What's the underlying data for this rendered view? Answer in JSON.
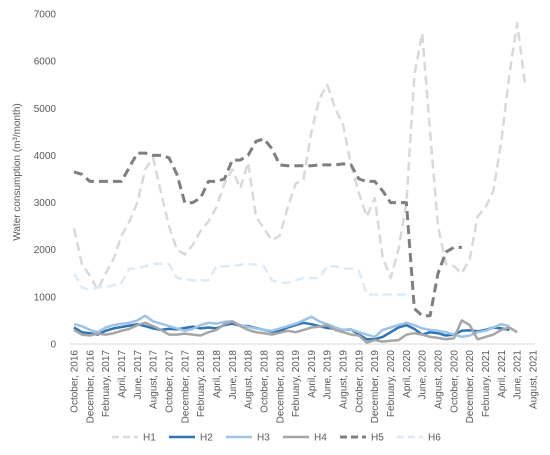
{
  "chart_data": {
    "type": "line",
    "title": "",
    "xlabel": "",
    "ylabel": "Water consumption (m³/month)",
    "ylim": [
      0,
      7000
    ],
    "yticks": [
      0,
      1000,
      2000,
      3000,
      4000,
      5000,
      6000,
      7000
    ],
    "grid": false,
    "legend_placement": "bottom",
    "x_tick_labels": [
      "October, 2016",
      "December, 2016",
      "February, 2017",
      "April, 2017",
      "June, 2017",
      "August, 2017",
      "October, 2017",
      "December, 2017",
      "February, 2018",
      "April, 2018",
      "June, 2018",
      "August, 2018",
      "October, 2018",
      "December, 2018",
      "February, 2019",
      "April, 2019",
      "June, 2019",
      "August, 2019",
      "October, 2019",
      "December, 2019",
      "February, 2020",
      "April, 2020",
      "June, 2020",
      "August, 2020",
      "October, 2020",
      "December, 2020",
      "February, 2021",
      "April, 2021",
      "June, 2021",
      "August, 2021"
    ],
    "series": [
      {
        "name": "H1",
        "color": "#d9d9d9",
        "dash": "dashed",
        "width": 2.5,
        "values": [
          2450,
          1700,
          1450,
          1150,
          1500,
          1800,
          2300,
          2600,
          3000,
          3700,
          3950,
          3200,
          2500,
          2000,
          1900,
          2100,
          2400,
          2600,
          2900,
          3400,
          3700,
          3300,
          3850,
          2700,
          2450,
          2200,
          2300,
          2900,
          3400,
          3500,
          4500,
          5200,
          5500,
          5000,
          4650,
          3800,
          3200,
          2700,
          3100,
          1850,
          1400,
          2000,
          3000,
          5700,
          6600,
          4500,
          2500,
          1700,
          1650,
          1500,
          1800,
          2700,
          2900,
          3250,
          4300,
          5700,
          6800,
          5500
        ]
      },
      {
        "name": "H2",
        "color": "#2e75b6",
        "dash": "solid",
        "width": 2.5,
        "values": [
          350,
          250,
          230,
          200,
          280,
          330,
          360,
          390,
          420,
          380,
          330,
          300,
          320,
          310,
          340,
          370,
          330,
          350,
          330,
          400,
          430,
          390,
          380,
          340,
          300,
          260,
          280,
          350,
          400,
          450,
          420,
          380,
          340,
          320,
          300,
          310,
          200,
          100,
          100,
          150,
          250,
          350,
          400,
          320,
          200,
          250,
          230,
          180,
          200,
          280,
          290,
          270,
          300,
          350,
          330,
          300
        ]
      },
      {
        "name": "H3",
        "color": "#9dc3e6",
        "dash": "solid",
        "width": 2.5,
        "values": [
          420,
          380,
          300,
          250,
          350,
          400,
          430,
          450,
          500,
          600,
          480,
          430,
          380,
          330,
          280,
          320,
          400,
          450,
          430,
          470,
          480,
          400,
          360,
          330,
          300,
          280,
          330,
          380,
          430,
          500,
          580,
          480,
          420,
          350,
          300,
          310,
          250,
          200,
          150,
          300,
          350,
          400,
          450,
          400,
          330,
          300,
          280,
          250,
          200,
          150,
          180,
          250,
          280,
          350,
          420,
          380
        ]
      },
      {
        "name": "H4",
        "color": "#a6a6a6",
        "dash": "solid",
        "width": 2.5,
        "values": [
          300,
          200,
          180,
          220,
          200,
          230,
          280,
          320,
          400,
          450,
          380,
          300,
          200,
          200,
          220,
          200,
          180,
          250,
          300,
          420,
          480,
          380,
          300,
          250,
          230,
          200,
          240,
          280,
          250,
          300,
          350,
          370,
          400,
          300,
          250,
          200,
          180,
          30,
          80,
          50,
          70,
          80,
          200,
          230,
          200,
          150,
          130,
          100,
          120,
          500,
          400,
          100,
          150,
          200,
          300,
          350,
          250
        ]
      },
      {
        "name": "H5",
        "color": "#7f7f7f",
        "dash": "dashed",
        "width": 3,
        "values": [
          3650,
          3600,
          3450,
          3450,
          3450,
          3450,
          3450,
          3750,
          4050,
          4050,
          4000,
          4000,
          3950,
          3600,
          3000,
          3000,
          3100,
          3450,
          3450,
          3500,
          3900,
          3900,
          4000,
          4300,
          4350,
          4150,
          3800,
          3780,
          3780,
          3780,
          3780,
          3800,
          3800,
          3800,
          3820,
          3800,
          3500,
          3450,
          3450,
          3250,
          3000,
          3000,
          3000,
          750,
          600,
          600,
          1500,
          1950,
          2050,
          2050
        ]
      },
      {
        "name": "H6",
        "color": "#deebf7",
        "dash": "dashed",
        "width": 2.5,
        "values": [
          1500,
          1200,
          1150,
          1200,
          1200,
          1250,
          1300,
          1600,
          1600,
          1650,
          1700,
          1700,
          1700,
          1400,
          1380,
          1350,
          1350,
          1350,
          1650,
          1650,
          1650,
          1680,
          1700,
          1680,
          1650,
          1350,
          1300,
          1300,
          1350,
          1400,
          1400,
          1400,
          1650,
          1650,
          1600,
          1600,
          1550,
          1050,
          1050,
          1050,
          1050,
          1050,
          1050
        ]
      }
    ]
  }
}
